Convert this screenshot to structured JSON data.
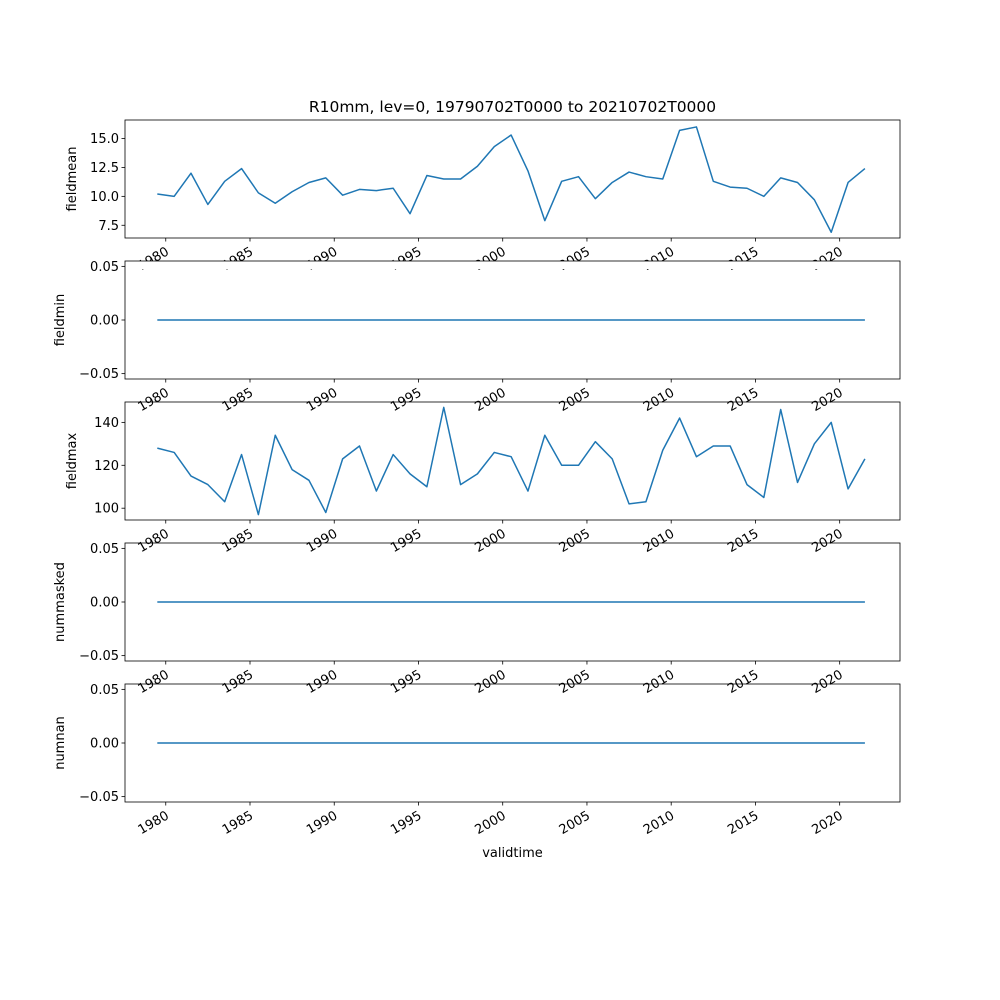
{
  "chart_data": [
    {
      "type": "line",
      "title": "R10mm, lev=0, 19790702T0000 to 20210702T0000",
      "ylabel": "fieldmean",
      "xlabel": "",
      "x_ticks": [
        "1980",
        "1985",
        "1990",
        "1995",
        "2000",
        "2005",
        "2010",
        "2015",
        "2020"
      ],
      "y_ticks": [
        "7.5",
        "10.0",
        "12.5",
        "15.0"
      ],
      "ylim": [
        6.4,
        16.6
      ],
      "xlim": [
        "1977-08-01",
        "2023-08-01"
      ],
      "grid": false,
      "color": "#1f77b4",
      "x": [
        "1979-07-02",
        "1980-07-02",
        "1981-07-02",
        "1982-07-02",
        "1983-07-02",
        "1984-07-02",
        "1985-07-02",
        "1986-07-02",
        "1987-07-02",
        "1988-07-02",
        "1989-07-02",
        "1990-07-02",
        "1991-07-02",
        "1992-07-02",
        "1993-07-02",
        "1994-07-02",
        "1995-07-02",
        "1996-07-02",
        "1997-07-02",
        "1998-07-02",
        "1999-07-02",
        "2000-07-02",
        "2001-07-02",
        "2002-07-02",
        "2003-07-02",
        "2004-07-02",
        "2005-07-02",
        "2006-07-02",
        "2007-07-02",
        "2008-07-02",
        "2009-07-02",
        "2010-07-02",
        "2011-07-02",
        "2012-07-02",
        "2013-07-02",
        "2014-07-02",
        "2015-07-02",
        "2016-07-02",
        "2017-07-02",
        "2018-07-02",
        "2019-07-02",
        "2020-07-02",
        "2021-07-02"
      ],
      "values": [
        10.2,
        10.0,
        12.0,
        9.3,
        11.3,
        12.4,
        10.3,
        9.4,
        10.4,
        11.2,
        11.6,
        10.1,
        10.6,
        10.5,
        10.7,
        8.5,
        11.8,
        11.5,
        11.5,
        12.6,
        14.3,
        15.3,
        12.2,
        7.9,
        11.3,
        11.7,
        9.8,
        11.2,
        12.1,
        11.7,
        11.5,
        15.7,
        16.0,
        11.3,
        10.8,
        10.7,
        10.0,
        11.6,
        11.2,
        9.7,
        6.9,
        11.2,
        12.4
      ]
    },
    {
      "type": "line",
      "ylabel": "fieldmin",
      "xlabel": "",
      "x_ticks": [
        "1980",
        "1985",
        "1990",
        "1995",
        "2000",
        "2005",
        "2010",
        "2015",
        "2020"
      ],
      "y_ticks": [
        "−0.05",
        "0.00",
        "0.05"
      ],
      "ylim": [
        -0.055,
        0.055
      ],
      "xlim": [
        "1977-08-01",
        "2023-08-01"
      ],
      "grid": false,
      "color": "#1f77b4",
      "x": [
        "1979-07-02",
        "1980-07-02",
        "1981-07-02",
        "1982-07-02",
        "1983-07-02",
        "1984-07-02",
        "1985-07-02",
        "1986-07-02",
        "1987-07-02",
        "1988-07-02",
        "1989-07-02",
        "1990-07-02",
        "1991-07-02",
        "1992-07-02",
        "1993-07-02",
        "1994-07-02",
        "1995-07-02",
        "1996-07-02",
        "1997-07-02",
        "1998-07-02",
        "1999-07-02",
        "2000-07-02",
        "2001-07-02",
        "2002-07-02",
        "2003-07-02",
        "2004-07-02",
        "2005-07-02",
        "2006-07-02",
        "2007-07-02",
        "2008-07-02",
        "2009-07-02",
        "2010-07-02",
        "2011-07-02",
        "2012-07-02",
        "2013-07-02",
        "2014-07-02",
        "2015-07-02",
        "2016-07-02",
        "2017-07-02",
        "2018-07-02",
        "2019-07-02",
        "2020-07-02",
        "2021-07-02"
      ],
      "values": [
        0,
        0,
        0,
        0,
        0,
        0,
        0,
        0,
        0,
        0,
        0,
        0,
        0,
        0,
        0,
        0,
        0,
        0,
        0,
        0,
        0,
        0,
        0,
        0,
        0,
        0,
        0,
        0,
        0,
        0,
        0,
        0,
        0,
        0,
        0,
        0,
        0,
        0,
        0,
        0,
        0,
        0,
        0
      ]
    },
    {
      "type": "line",
      "ylabel": "fieldmax",
      "xlabel": "",
      "x_ticks": [
        "1980",
        "1985",
        "1990",
        "1995",
        "2000",
        "2005",
        "2010",
        "2015",
        "2020"
      ],
      "y_ticks": [
        "100",
        "120",
        "140"
      ],
      "ylim": [
        94.5,
        149.5
      ],
      "xlim": [
        "1977-08-01",
        "2023-08-01"
      ],
      "grid": false,
      "color": "#1f77b4",
      "x": [
        "1979-07-02",
        "1980-07-02",
        "1981-07-02",
        "1982-07-02",
        "1983-07-02",
        "1984-07-02",
        "1985-07-02",
        "1986-07-02",
        "1987-07-02",
        "1988-07-02",
        "1989-07-02",
        "1990-07-02",
        "1991-07-02",
        "1992-07-02",
        "1993-07-02",
        "1994-07-02",
        "1995-07-02",
        "1996-07-02",
        "1997-07-02",
        "1998-07-02",
        "1999-07-02",
        "2000-07-02",
        "2001-07-02",
        "2002-07-02",
        "2003-07-02",
        "2004-07-02",
        "2005-07-02",
        "2006-07-02",
        "2007-07-02",
        "2008-07-02",
        "2009-07-02",
        "2010-07-02",
        "2011-07-02",
        "2012-07-02",
        "2013-07-02",
        "2014-07-02",
        "2015-07-02",
        "2016-07-02",
        "2017-07-02",
        "2018-07-02",
        "2019-07-02",
        "2020-07-02",
        "2021-07-02"
      ],
      "values": [
        128,
        126,
        115,
        111,
        103,
        125,
        97,
        134,
        118,
        113,
        98,
        123,
        129,
        108,
        125,
        116,
        110,
        147,
        111,
        116,
        126,
        124,
        108,
        134,
        120,
        120,
        131,
        123,
        102,
        103,
        127,
        142,
        124,
        129,
        129,
        111,
        105,
        146,
        112,
        130,
        140,
        109,
        123
      ]
    },
    {
      "type": "line",
      "ylabel": "nummasked",
      "xlabel": "",
      "x_ticks": [
        "1980",
        "1985",
        "1990",
        "1995",
        "2000",
        "2005",
        "2010",
        "2015",
        "2020"
      ],
      "y_ticks": [
        "−0.05",
        "0.00",
        "0.05"
      ],
      "ylim": [
        -0.055,
        0.055
      ],
      "xlim": [
        "1977-08-01",
        "2023-08-01"
      ],
      "grid": false,
      "color": "#1f77b4",
      "x": [
        "1979-07-02",
        "1980-07-02",
        "1981-07-02",
        "1982-07-02",
        "1983-07-02",
        "1984-07-02",
        "1985-07-02",
        "1986-07-02",
        "1987-07-02",
        "1988-07-02",
        "1989-07-02",
        "1990-07-02",
        "1991-07-02",
        "1992-07-02",
        "1993-07-02",
        "1994-07-02",
        "1995-07-02",
        "1996-07-02",
        "1997-07-02",
        "1998-07-02",
        "1999-07-02",
        "2000-07-02",
        "2001-07-02",
        "2002-07-02",
        "2003-07-02",
        "2004-07-02",
        "2005-07-02",
        "2006-07-02",
        "2007-07-02",
        "2008-07-02",
        "2009-07-02",
        "2010-07-02",
        "2011-07-02",
        "2012-07-02",
        "2013-07-02",
        "2014-07-02",
        "2015-07-02",
        "2016-07-02",
        "2017-07-02",
        "2018-07-02",
        "2019-07-02",
        "2020-07-02",
        "2021-07-02"
      ],
      "values": [
        0,
        0,
        0,
        0,
        0,
        0,
        0,
        0,
        0,
        0,
        0,
        0,
        0,
        0,
        0,
        0,
        0,
        0,
        0,
        0,
        0,
        0,
        0,
        0,
        0,
        0,
        0,
        0,
        0,
        0,
        0,
        0,
        0,
        0,
        0,
        0,
        0,
        0,
        0,
        0,
        0,
        0,
        0
      ]
    },
    {
      "type": "line",
      "ylabel": "numnan",
      "xlabel": "validtime",
      "x_ticks": [
        "1980",
        "1985",
        "1990",
        "1995",
        "2000",
        "2005",
        "2010",
        "2015",
        "2020"
      ],
      "y_ticks": [
        "−0.05",
        "0.00",
        "0.05"
      ],
      "ylim": [
        -0.055,
        0.055
      ],
      "xlim": [
        "1977-08-01",
        "2023-08-01"
      ],
      "grid": false,
      "color": "#1f77b4",
      "x": [
        "1979-07-02",
        "1980-07-02",
        "1981-07-02",
        "1982-07-02",
        "1983-07-02",
        "1984-07-02",
        "1985-07-02",
        "1986-07-02",
        "1987-07-02",
        "1988-07-02",
        "1989-07-02",
        "1990-07-02",
        "1991-07-02",
        "1992-07-02",
        "1993-07-02",
        "1994-07-02",
        "1995-07-02",
        "1996-07-02",
        "1997-07-02",
        "1998-07-02",
        "1999-07-02",
        "2000-07-02",
        "2001-07-02",
        "2002-07-02",
        "2003-07-02",
        "2004-07-02",
        "2005-07-02",
        "2006-07-02",
        "2007-07-02",
        "2008-07-02",
        "2009-07-02",
        "2010-07-02",
        "2011-07-02",
        "2012-07-02",
        "2013-07-02",
        "2014-07-02",
        "2015-07-02",
        "2016-07-02",
        "2017-07-02",
        "2018-07-02",
        "2019-07-02",
        "2020-07-02",
        "2021-07-02"
      ],
      "values": [
        0,
        0,
        0,
        0,
        0,
        0,
        0,
        0,
        0,
        0,
        0,
        0,
        0,
        0,
        0,
        0,
        0,
        0,
        0,
        0,
        0,
        0,
        0,
        0,
        0,
        0,
        0,
        0,
        0,
        0,
        0,
        0,
        0,
        0,
        0,
        0,
        0,
        0,
        0,
        0,
        0,
        0,
        0
      ]
    }
  ]
}
